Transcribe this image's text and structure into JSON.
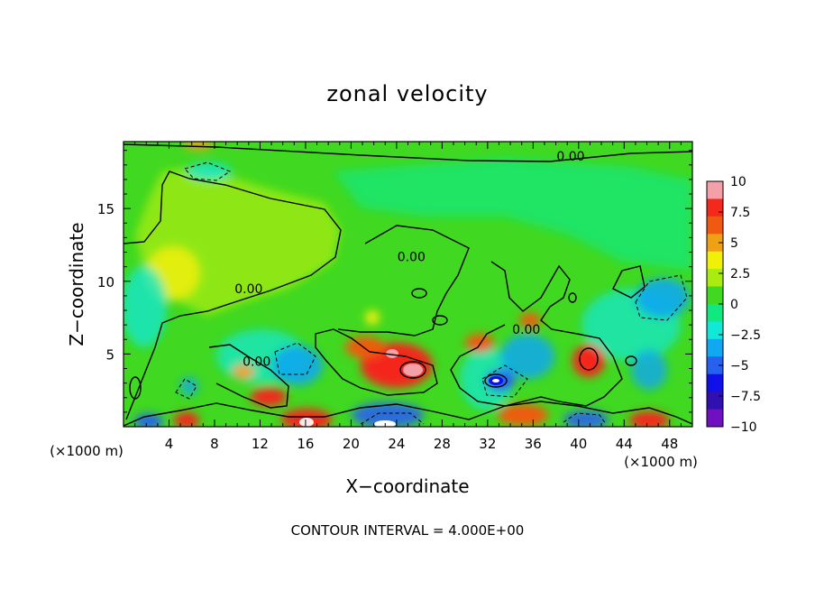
{
  "chart_data": {
    "type": "heatmap",
    "title": "zonal velocity",
    "xlabel": "X−coordinate",
    "ylabel": "Z−coordinate",
    "x_units": "(×1000 m)",
    "z_units": "(×1000 m)",
    "xlim": [
      0,
      50
    ],
    "ylim": [
      0,
      19.6
    ],
    "x_ticks": [
      4,
      8,
      12,
      16,
      20,
      24,
      28,
      32,
      36,
      40,
      44,
      48
    ],
    "y_ticks": [
      5,
      10,
      15
    ],
    "colorbar": {
      "range": [
        -10,
        10
      ],
      "tick_labels": [
        "10",
        "7.5",
        "5",
        "2.5",
        "0",
        "−2.5",
        "−5",
        "−7.5",
        "−10"
      ],
      "colors": [
        "#f4a0a8",
        "#f4281c",
        "#f05a10",
        "#f0a014",
        "#f0f008",
        "#a8ec10",
        "#40d820",
        "#10e880",
        "#10e8d8",
        "#10a8f0",
        "#2860f0",
        "#1010e8",
        "#3010b0",
        "#7010c0"
      ]
    },
    "contour_labels": [
      {
        "text": "0.00",
        "x": 39.3,
        "z": 18.6
      },
      {
        "text": "0.00",
        "x": 11.0,
        "z": 9.5
      },
      {
        "text": "0.00",
        "x": 25.3,
        "z": 11.7
      },
      {
        "text": "0.00",
        "x": 35.4,
        "z": 6.7
      },
      {
        "text": "0.00",
        "x": 11.7,
        "z": 4.5
      }
    ],
    "footer": "CONTOUR INTERVAL = 4.000E+00"
  }
}
